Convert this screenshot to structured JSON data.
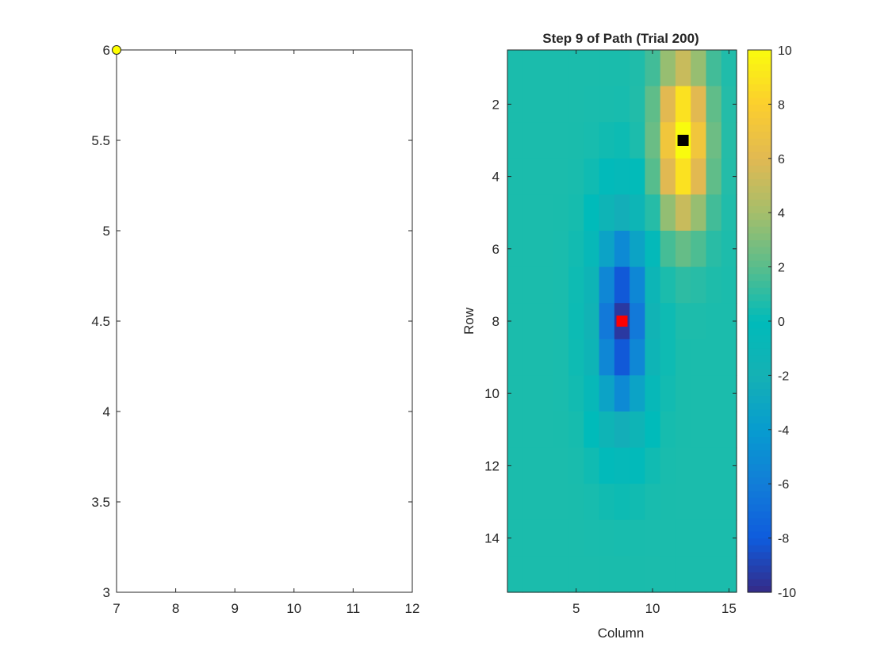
{
  "chart_data": [
    {
      "type": "scatter",
      "title": "",
      "xlabel": "",
      "ylabel": "",
      "xlim": [
        7,
        12
      ],
      "ylim": [
        3,
        6
      ],
      "xticks": [
        7,
        8,
        9,
        10,
        11,
        12
      ],
      "yticks": [
        3,
        3.5,
        4,
        4.5,
        5,
        5.5,
        6
      ],
      "points": [
        {
          "x": 7,
          "y": 6
        }
      ],
      "marker_color": "#ffff00",
      "grid": false
    },
    {
      "type": "heatmap",
      "title": "Step 9 of Path (Trial 200)",
      "xlabel": "Column",
      "ylabel": "Row",
      "xlim": [
        0.5,
        15.5
      ],
      "ylim": [
        0.5,
        15.5
      ],
      "y_reversed": true,
      "xticks": [
        5,
        10,
        15
      ],
      "yticks": [
        2,
        4,
        6,
        8,
        10,
        12,
        14
      ],
      "rows": 15,
      "cols": 15,
      "colormap": "parula",
      "clim": [
        -10,
        10
      ],
      "colorbar_ticks": [
        -10,
        -8,
        -6,
        -4,
        -2,
        0,
        2,
        4,
        6,
        8,
        10
      ],
      "peak": {
        "row": 3,
        "col": 12,
        "value": 10
      },
      "trough": {
        "row": 8,
        "col": 8,
        "value": -10
      },
      "markers": [
        {
          "row": 3,
          "col": 12,
          "color": "#000000"
        },
        {
          "row": 8,
          "col": 8,
          "color": "#ff0000"
        }
      ],
      "grid": false
    }
  ]
}
